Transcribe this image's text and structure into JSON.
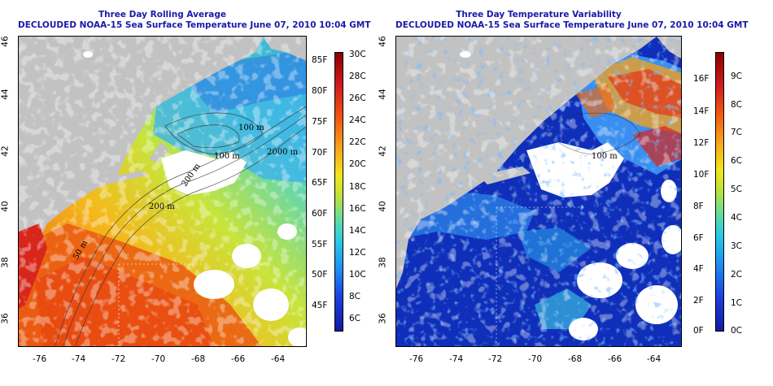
{
  "panels": [
    {
      "title_line1": "Three Day Rolling Average",
      "title_line2": "DECLOUDED NOAA-15 Sea Surface Temperature June 07, 2010 10:04 GMT",
      "lon_ticks": [
        "-76",
        "-74",
        "-72",
        "-70",
        "-68",
        "-66",
        "-64"
      ],
      "lat_ticks": [
        "46",
        "44",
        "42",
        "40",
        "38",
        "36"
      ],
      "colorbar": {
        "left_labels": [
          "85F",
          "80F",
          "75F",
          "70F",
          "65F",
          "60F",
          "55F",
          "50F",
          "45F"
        ],
        "right_labels": [
          "30C",
          "28C",
          "26C",
          "24C",
          "22C",
          "20C",
          "18C",
          "16C",
          "14C",
          "12C",
          "10C",
          "8C",
          "6C"
        ]
      },
      "contour_labels": [
        "100 m",
        "100 m",
        "2000 m",
        "200 m",
        "200 m",
        "50 m"
      ]
    },
    {
      "title_line1": "Three Day Temperature Variability",
      "title_line2": "DECLOUDED NOAA-15 Sea Surface Temperature June 07, 2010 10:04 GMT",
      "lon_ticks": [
        "-76",
        "-74",
        "-72",
        "-70",
        "-68",
        "-66",
        "-64"
      ],
      "lat_ticks": [
        "46",
        "44",
        "42",
        "40",
        "38",
        "36"
      ],
      "colorbar": {
        "left_labels": [
          "16F",
          "14F",
          "12F",
          "10F",
          "8F",
          "6F",
          "4F",
          "2F",
          "0F"
        ],
        "right_labels": [
          "9C",
          "8C",
          "7C",
          "6C",
          "5C",
          "4C",
          "3C",
          "2C",
          "1C",
          "0C"
        ]
      },
      "contour_labels": [
        "100 m"
      ]
    }
  ],
  "colors": {
    "land": "#c2c2c2",
    "cloud": "#ffffff",
    "title": "#1a1aa8"
  }
}
